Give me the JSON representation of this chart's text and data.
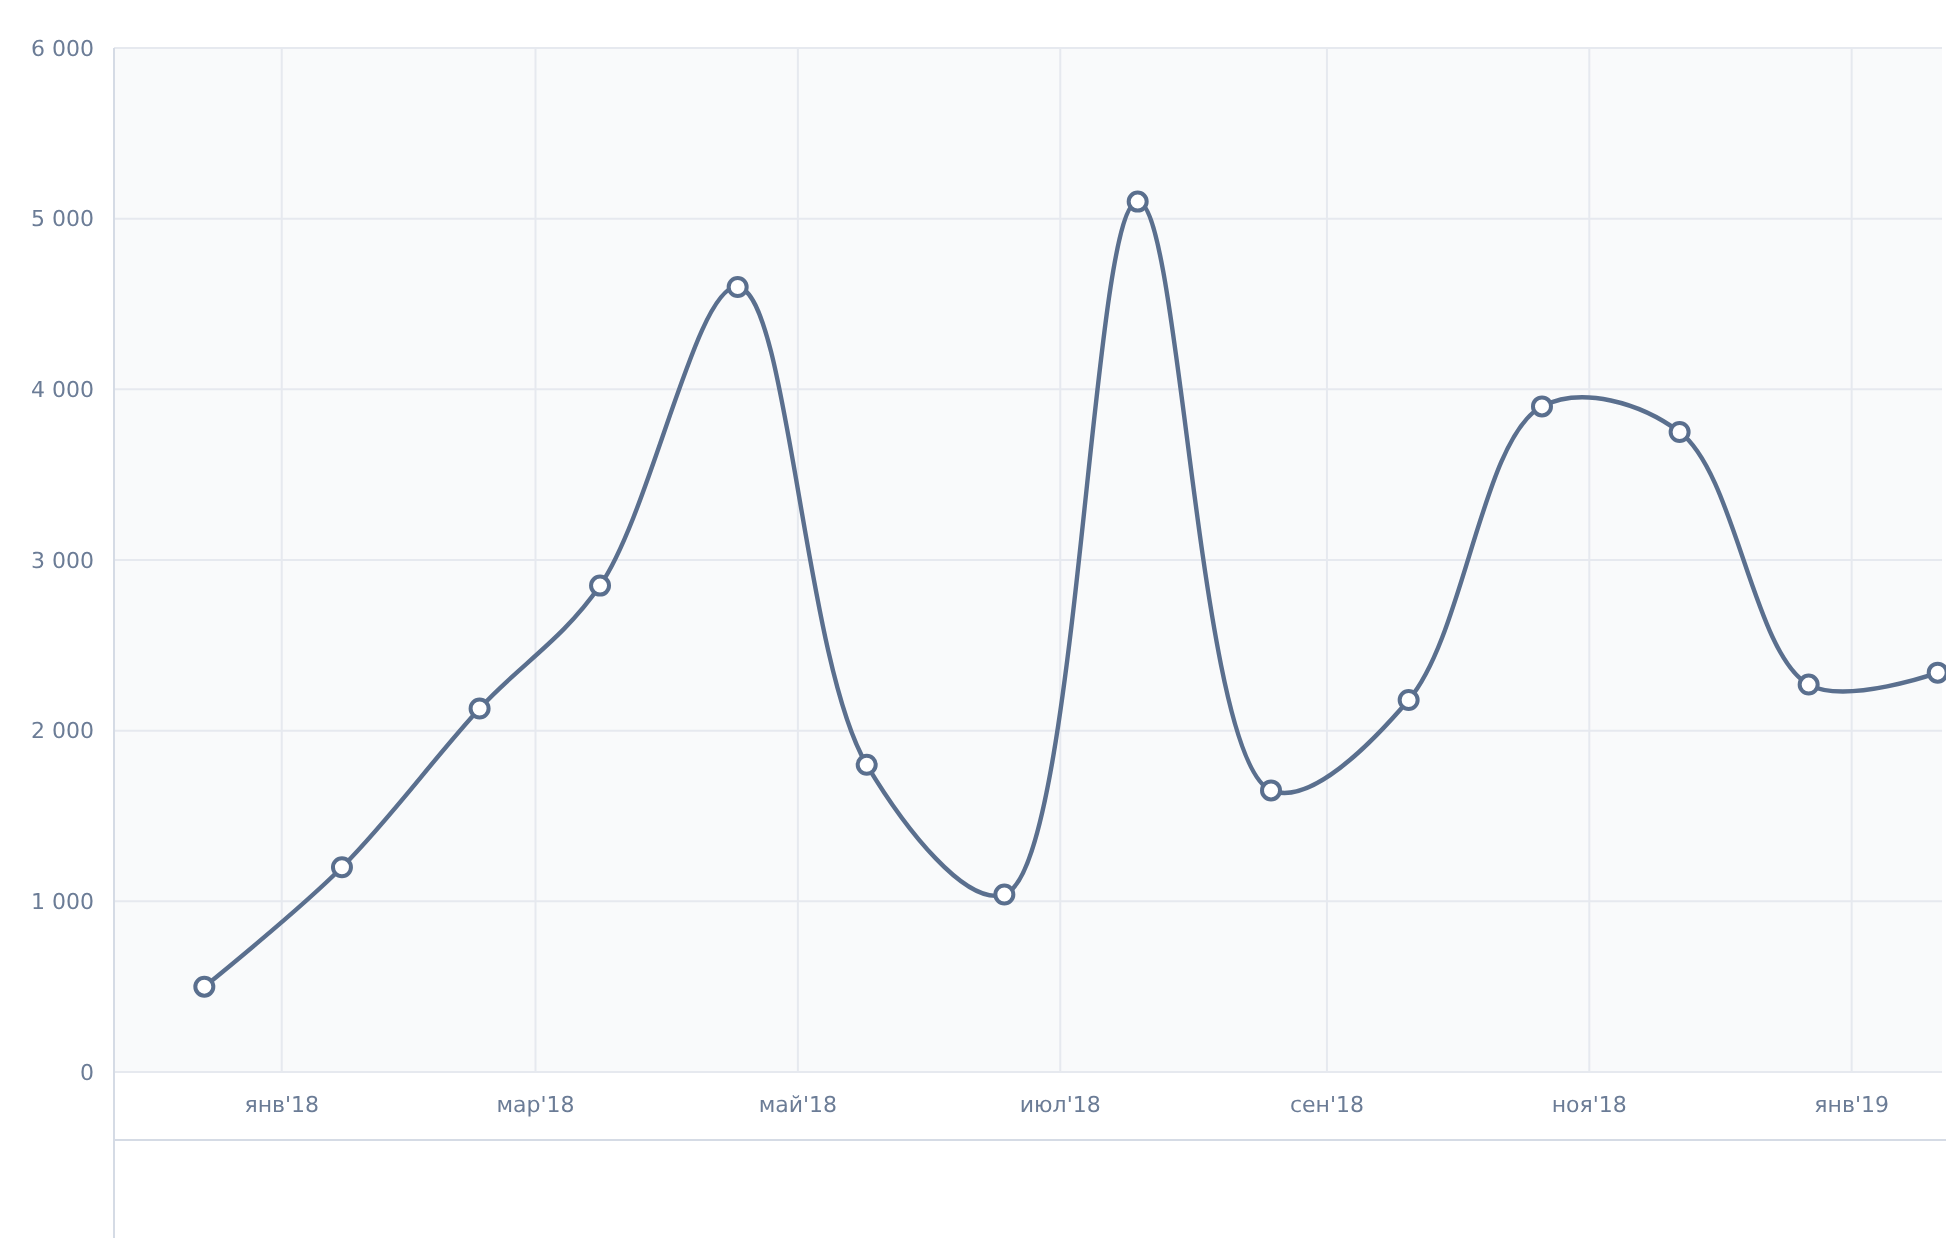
{
  "chart_data": {
    "type": "line",
    "x": [
      "2017-12-14",
      "2018-01-15",
      "2018-02-16",
      "2018-03-16",
      "2018-04-17",
      "2018-05-17",
      "2018-06-18",
      "2018-07-19",
      "2018-08-19",
      "2018-09-20",
      "2018-10-21",
      "2018-11-22",
      "2018-12-22",
      "2019-01-21"
    ],
    "series": [
      {
        "color": "#5a6f8e",
        "values": [
          500,
          1200,
          2130,
          2850,
          4600,
          1800,
          1040,
          5100,
          1650,
          2180,
          3900,
          3750,
          2270,
          2340
        ]
      }
    ],
    "xlim": [
      "2017-11-23",
      "2019-01-22"
    ],
    "xticks": [
      {
        "value": "2018-01-01",
        "label": "янв'18"
      },
      {
        "value": "2018-03-01",
        "label": "мар'18"
      },
      {
        "value": "2018-05-01",
        "label": "май'18"
      },
      {
        "value": "2018-07-01",
        "label": "июл'18"
      },
      {
        "value": "2018-09-01",
        "label": "сен'18"
      },
      {
        "value": "2018-11-01",
        "label": "ноя'18"
      },
      {
        "value": "2019-01-01",
        "label": "янв'19"
      }
    ],
    "ylim": [
      0,
      6000
    ],
    "yticks": [
      {
        "value": 0,
        "label": "0"
      },
      {
        "value": 1000,
        "label": "1 000"
      },
      {
        "value": 2000,
        "label": "2 000"
      },
      {
        "value": 3000,
        "label": "3 000"
      },
      {
        "value": 4000,
        "label": "4 000"
      },
      {
        "value": 5000,
        "label": "5 000"
      },
      {
        "value": 6000,
        "label": "6 000"
      }
    ],
    "grid": true,
    "marker": "circle",
    "line_style": "solid"
  }
}
